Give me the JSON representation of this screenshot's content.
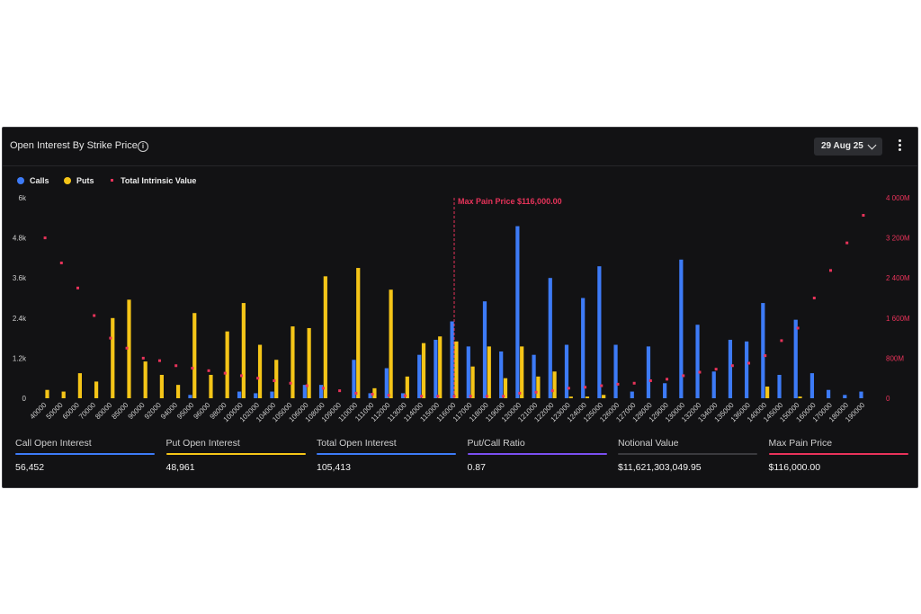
{
  "panel": {
    "title": "Open Interest By Strike Price",
    "date_selector": "29 Aug 25"
  },
  "legend": [
    {
      "name": "Calls",
      "color": "#3d7bf7"
    },
    {
      "name": "Puts",
      "color": "#f5c518"
    },
    {
      "name": "Total Intrinsic Value",
      "color": "#e8335a"
    }
  ],
  "chart_data": {
    "type": "bar",
    "categories": [
      "40000",
      "50000",
      "60000",
      "70000",
      "80000",
      "85000",
      "90000",
      "92000",
      "94000",
      "95000",
      "96000",
      "98000",
      "100000",
      "102000",
      "104000",
      "105000",
      "106000",
      "108000",
      "109000",
      "110000",
      "111000",
      "112000",
      "113000",
      "114000",
      "115000",
      "116000",
      "117000",
      "118000",
      "119000",
      "120000",
      "121000",
      "122000",
      "123000",
      "124000",
      "125000",
      "126000",
      "127000",
      "128000",
      "129000",
      "130000",
      "132000",
      "134000",
      "135000",
      "136000",
      "140000",
      "145000",
      "150000",
      "160000",
      "170000",
      "180000",
      "190000"
    ],
    "series": [
      {
        "name": "Calls",
        "values": [
          0,
          0,
          0,
          0,
          0,
          0,
          0,
          0,
          0,
          100,
          0,
          0,
          200,
          150,
          200,
          0,
          400,
          400,
          0,
          1150,
          150,
          900,
          150,
          1300,
          1750,
          2300,
          1550,
          2900,
          1400,
          5150,
          1300,
          3600,
          1600,
          3000,
          3950,
          1600,
          200,
          1550,
          450,
          4150,
          2200,
          800,
          1750,
          1700,
          2850,
          700,
          2350,
          750,
          250,
          100,
          200
        ]
      },
      {
        "name": "Puts",
        "values": [
          250,
          200,
          750,
          500,
          2400,
          2950,
          1100,
          700,
          400,
          2550,
          700,
          2000,
          2850,
          1600,
          1150,
          2150,
          2100,
          3650,
          0,
          3900,
          300,
          3250,
          650,
          1650,
          1850,
          1700,
          950,
          1550,
          600,
          1550,
          650,
          800,
          50,
          50,
          100,
          0,
          0,
          0,
          0,
          0,
          0,
          0,
          0,
          0,
          350,
          0,
          50,
          0,
          0,
          0,
          0
        ]
      },
      {
        "name": "Total Intrinsic Value",
        "values": [
          3200,
          2700,
          2200,
          1650,
          1200,
          1000,
          800,
          750,
          650,
          600,
          550,
          500,
          450,
          400,
          350,
          300,
          250,
          200,
          150,
          100,
          80,
          60,
          50,
          40,
          40,
          40,
          40,
          40,
          40,
          100,
          120,
          150,
          200,
          220,
          250,
          280,
          300,
          350,
          380,
          450,
          520,
          580,
          650,
          700,
          850,
          1150,
          1400,
          2000,
          2550,
          3100,
          3650
        ]
      }
    ],
    "y_left_ticks": [
      "0",
      "1.2k",
      "2.4k",
      "3.6k",
      "4.8k",
      "6k"
    ],
    "y_right_ticks": [
      "0",
      "800M",
      "1 600M",
      "2 400M",
      "3 200M",
      "4 000M"
    ],
    "ylim_left": [
      0,
      6000
    ],
    "ylim_right": [
      0,
      4000
    ],
    "max_pain_label": "Max Pain Price $116,000.00",
    "max_pain_strike": "116000",
    "grid": false
  },
  "stats": [
    {
      "label": "Call Open Interest",
      "value": "56,452",
      "color": "#3d7bf7"
    },
    {
      "label": "Put Open Interest",
      "value": "48,961",
      "color": "#f5c518"
    },
    {
      "label": "Total Open Interest",
      "value": "105,413",
      "color": "#3d7bf7"
    },
    {
      "label": "Put/Call Ratio",
      "value": "0.87",
      "color": "#7a4ff0"
    },
    {
      "label": "Notional Value",
      "value": "$11,621,303,049.95",
      "color": "#3a3a3e"
    },
    {
      "label": "Max Pain Price",
      "value": "$116,000.00",
      "color": "#e8335a"
    }
  ]
}
